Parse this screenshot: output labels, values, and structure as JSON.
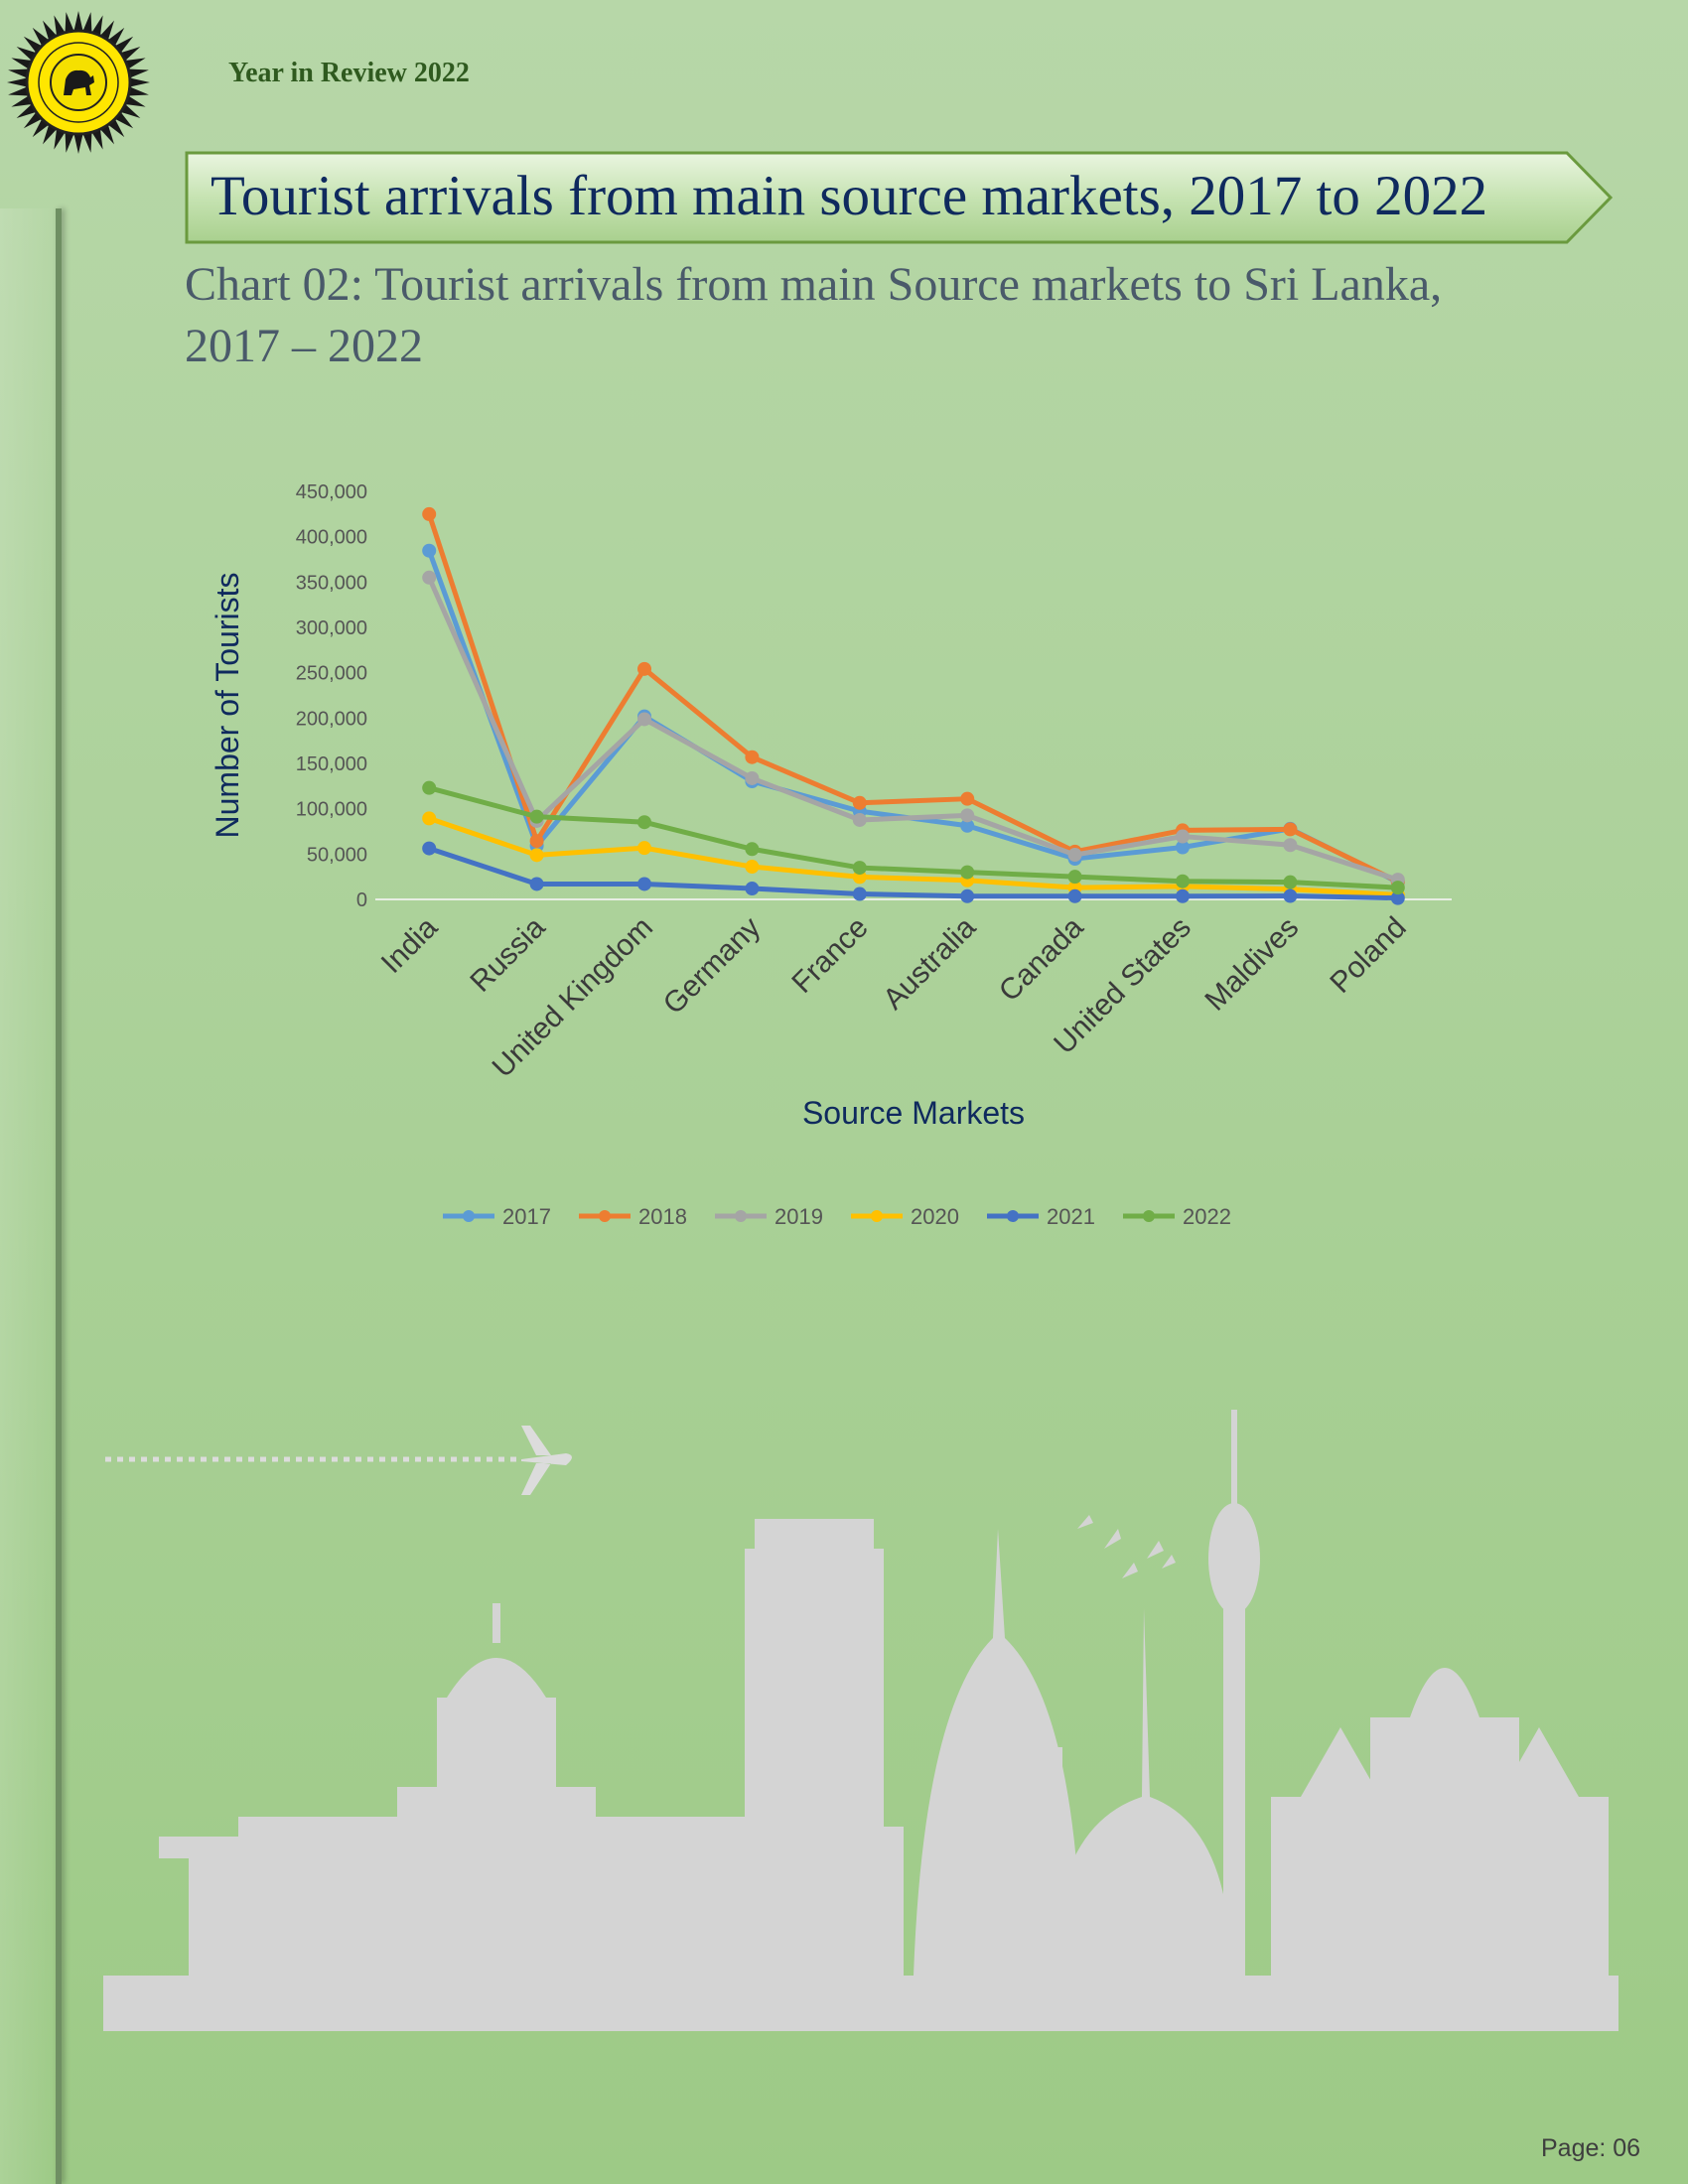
{
  "header": {
    "text": "Year in Review 2022"
  },
  "banner": {
    "title": "Tourist arrivals from main source markets, 2017 to 2022"
  },
  "caption": {
    "line1": "Chart 02: Tourist arrivals from main Source markets to Sri Lanka,",
    "line2": "2017 – 2022"
  },
  "footer": {
    "page": "Page: 06"
  },
  "colors": {
    "2017": "#5b9bd5",
    "2018": "#ed7d31",
    "2019": "#a5a5a5",
    "2020": "#ffc000",
    "2021": "#4472c4",
    "2022": "#70ad47"
  },
  "chart_data": {
    "type": "line",
    "title": "",
    "xlabel": "Source Markets",
    "ylabel": "Number of Tourists",
    "ylim": [
      0,
      450000
    ],
    "yticks": [
      0,
      50000,
      100000,
      150000,
      200000,
      250000,
      300000,
      350000,
      400000,
      450000
    ],
    "ytick_labels": [
      "0",
      "50,000",
      "100,000",
      "150,000",
      "200,000",
      "250,000",
      "300,000",
      "350,000",
      "400,000",
      "450,000"
    ],
    "grid": false,
    "legend": "bottom",
    "categories": [
      "India",
      "Russia",
      "United Kingdom",
      "Germany",
      "France",
      "Australia",
      "Canada",
      "United States",
      "Maldives",
      "Poland"
    ],
    "series": [
      {
        "name": "2017",
        "color": "#5b9bd5",
        "values": [
          384628,
          59191,
          201879,
          130227,
          97282,
          81281,
          44896,
          57479,
          77843,
          19036
        ]
      },
      {
        "name": "2018",
        "color": "#ed7d31",
        "values": [
          424887,
          64497,
          254176,
          156888,
          106449,
          110928,
          52681,
          76198,
          77323,
          19734
        ]
      },
      {
        "name": "2019",
        "color": "#a5a5a5",
        "values": [
          355002,
          86549,
          198776,
          133616,
          87623,
          92674,
          49209,
          69460,
          59953,
          21802
        ]
      },
      {
        "name": "2020",
        "color": "#ffc000",
        "values": [
          89357,
          48917,
          56736,
          36069,
          24745,
          21010,
          13032,
          14390,
          11225,
          5000
        ]
      },
      {
        "name": "2021",
        "color": "#4472c4",
        "values": [
          56268,
          16999,
          17000,
          12000,
          6000,
          3500,
          3500,
          3500,
          3800,
          1500
        ]
      },
      {
        "name": "2022",
        "color": "#70ad47",
        "values": [
          123004,
          91272,
          85187,
          55542,
          34940,
          30000,
          25000,
          20000,
          19000,
          13000
        ]
      }
    ]
  }
}
